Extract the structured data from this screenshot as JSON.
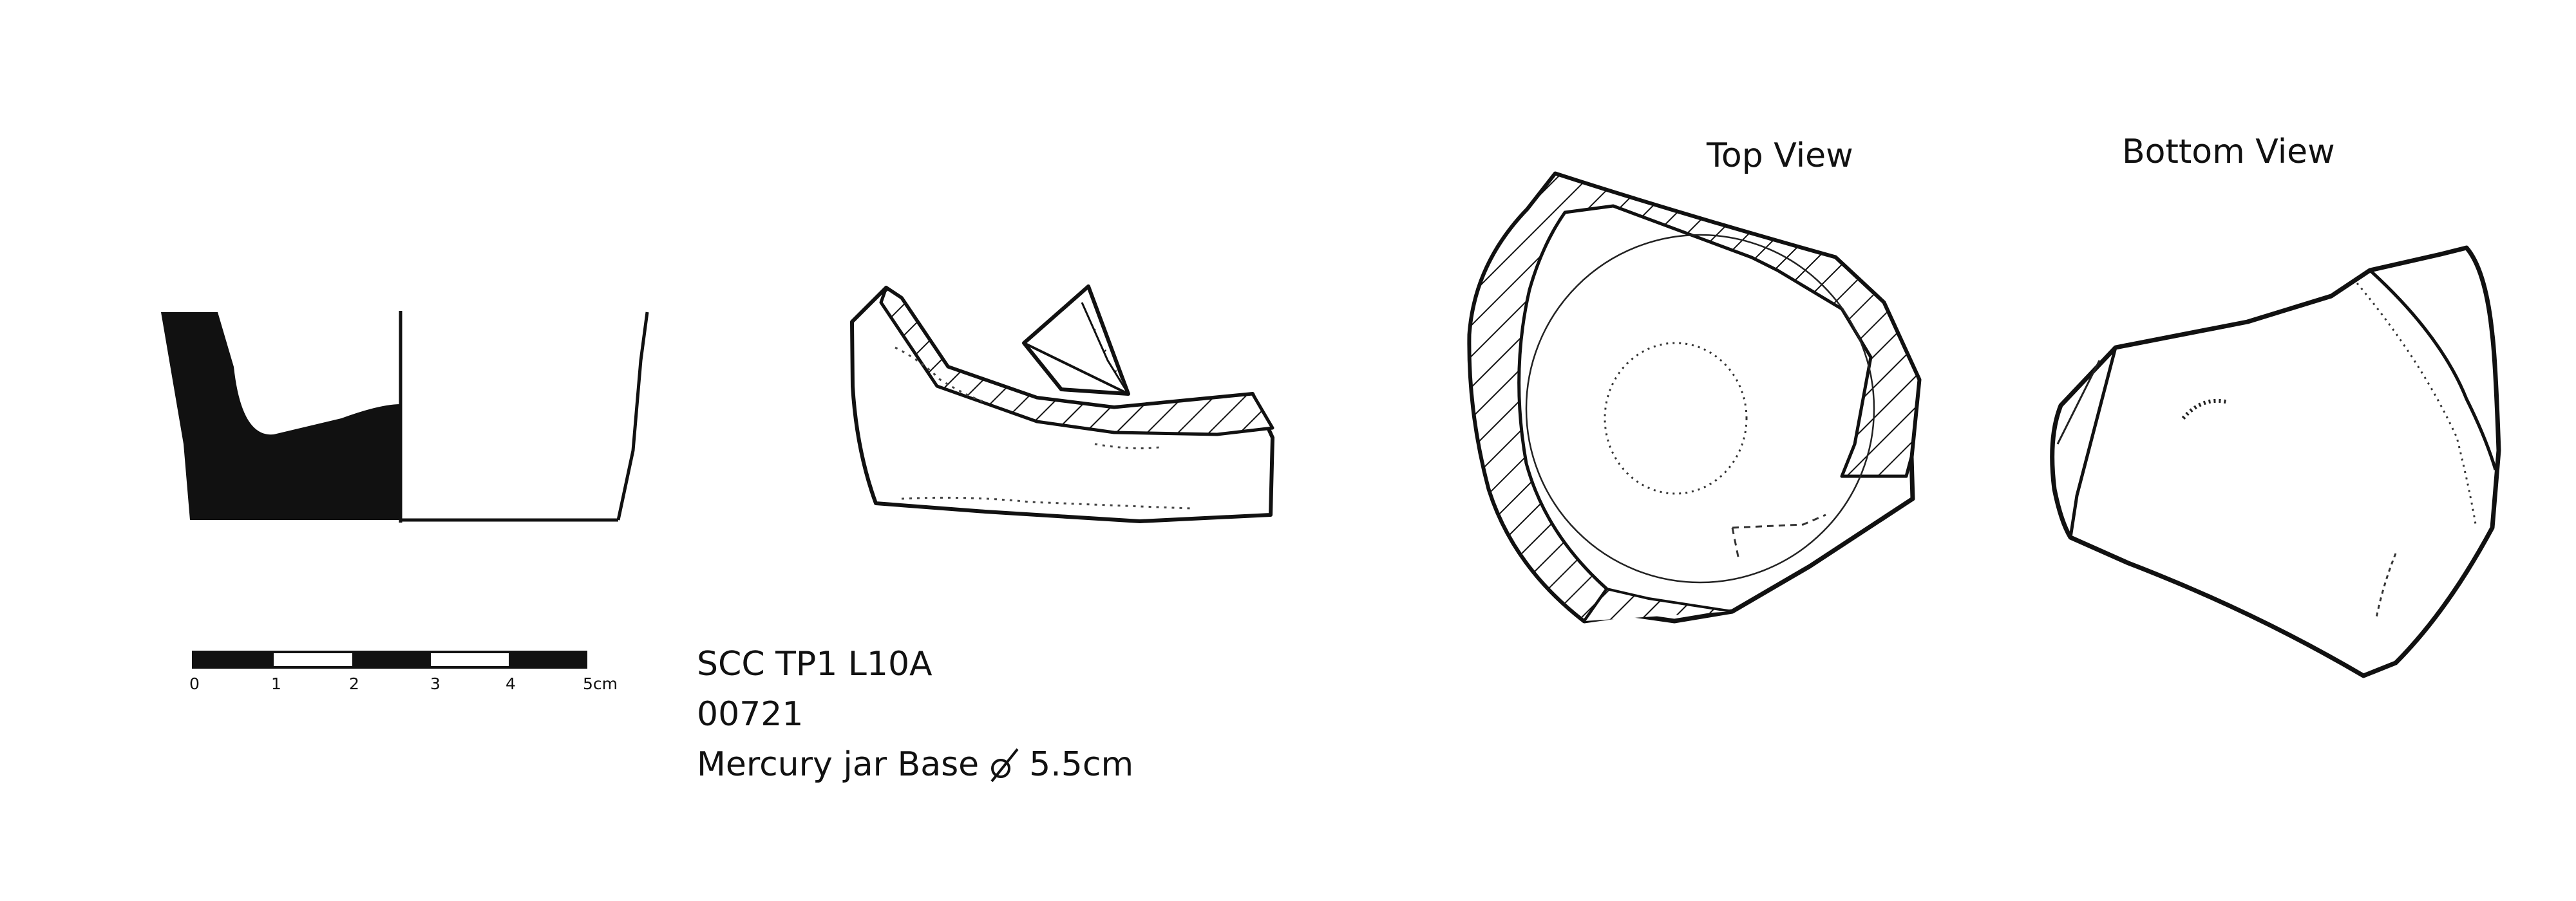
{
  "labels": {
    "top_view": "Top View",
    "bottom_view": "Bottom View"
  },
  "info": {
    "line1": "SCC TP1 L10A",
    "line2": "00721",
    "line3_prefix": "Mercury jar Base",
    "line3_value": "5.5cm"
  },
  "scale_bar": {
    "ticks": [
      "0",
      "1",
      "2",
      "3",
      "4",
      "5cm"
    ]
  },
  "colors": {
    "ink": "#111111",
    "paper": "#ffffff"
  }
}
